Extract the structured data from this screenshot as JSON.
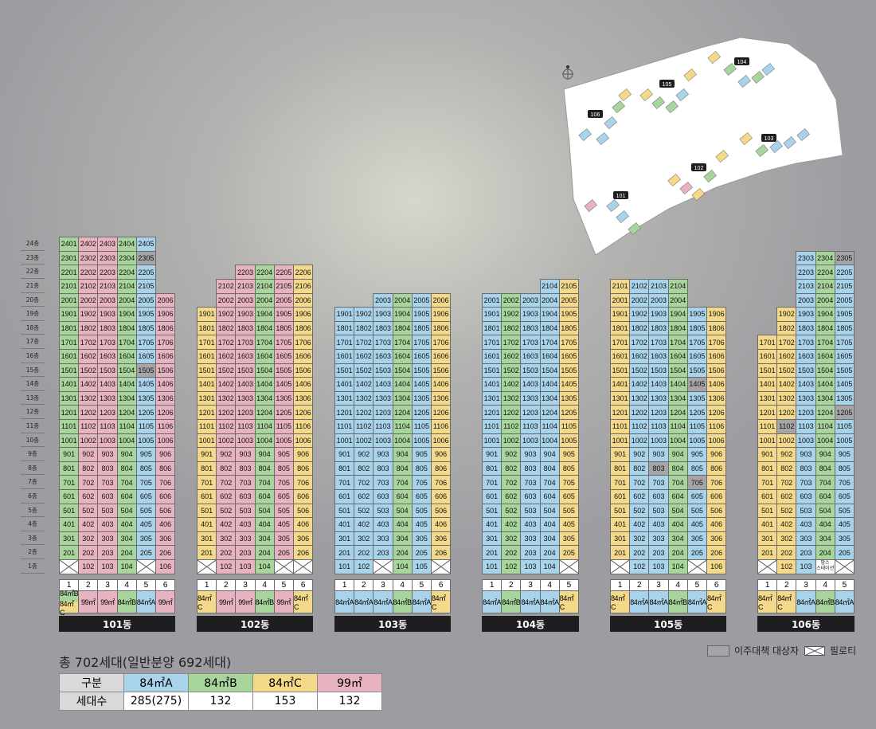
{
  "colors": {
    "A": "#a9d3ea",
    "B": "#a8d59b",
    "C": "#f4d98a",
    "D": "#e8b3c0",
    "relocation": "#a5a5a8",
    "pilotis": "#ffffff"
  },
  "floor_labels": [
    "24층",
    "23층",
    "22층",
    "21층",
    "20층",
    "19층",
    "18층",
    "17층",
    "16층",
    "15층",
    "14층",
    "13층",
    "12층",
    "11층",
    "10층",
    "9층",
    "8층",
    "7층",
    "6층",
    "5층",
    "4층",
    "3층",
    "2층",
    "1층"
  ],
  "buildings": [
    {
      "name": "101동",
      "line_types": [
        "B",
        "D",
        "D",
        "B",
        "A",
        "D"
      ],
      "type_labels": [
        [
          "84㎡B",
          "84㎡C"
        ],
        [
          "99㎡"
        ],
        [
          "99㎡"
        ],
        [
          "84㎡B"
        ],
        [
          "84㎡A"
        ],
        [
          "99㎡"
        ]
      ],
      "top_floors": [
        24,
        24,
        24,
        24,
        24,
        20
      ],
      "pilotis": [
        1,
        5
      ],
      "relocation": [
        "1505",
        "2305"
      ],
      "special": {}
    },
    {
      "name": "102동",
      "line_types": [
        "C",
        "D",
        "D",
        "B",
        "D",
        "C"
      ],
      "type_labels": [
        [
          "84㎡C"
        ],
        [
          "99㎡"
        ],
        [
          "99㎡"
        ],
        [
          "84㎡B"
        ],
        [
          "99㎡"
        ],
        [
          "84㎡C"
        ]
      ],
      "top_floors": [
        19,
        21,
        22,
        22,
        22,
        22
      ],
      "pilotis": [
        1,
        5,
        6
      ],
      "relocation": [],
      "special": {}
    },
    {
      "name": "103동",
      "line_types": [
        "A",
        "A",
        "A",
        "B",
        "A",
        "C"
      ],
      "type_labels": [
        [
          "84㎡A"
        ],
        [
          "84㎡A"
        ],
        [
          "84㎡A"
        ],
        [
          "84㎡B"
        ],
        [
          "84㎡A"
        ],
        [
          "84㎡C"
        ]
      ],
      "top_floors": [
        19,
        19,
        20,
        20,
        20,
        20
      ],
      "pilotis": [
        3,
        6
      ],
      "relocation": [],
      "special": {}
    },
    {
      "name": "104동",
      "line_types": [
        "A",
        "B",
        "A",
        "A",
        "C"
      ],
      "type_labels": [
        [
          "84㎡A"
        ],
        [
          "84㎡B"
        ],
        [
          "84㎡A"
        ],
        [
          "84㎡A"
        ],
        [
          "84㎡C"
        ]
      ],
      "top_floors": [
        20,
        20,
        20,
        21,
        21
      ],
      "pilotis": [
        5
      ],
      "relocation": [],
      "special": {}
    },
    {
      "name": "105동",
      "line_types": [
        "C",
        "A",
        "A",
        "B",
        "A",
        "C"
      ],
      "type_labels": [
        [
          "84㎡C"
        ],
        [
          "84㎡A"
        ],
        [
          "84㎡A"
        ],
        [
          "84㎡B"
        ],
        [
          "84㎡A"
        ],
        [
          "84㎡C"
        ]
      ],
      "top_floors": [
        21,
        21,
        21,
        21,
        19,
        19
      ],
      "pilotis": [
        1,
        5
      ],
      "relocation": [
        "803",
        "1405",
        "705"
      ],
      "special": {}
    },
    {
      "name": "106동",
      "line_types": [
        "C",
        "C",
        "A",
        "B",
        "A"
      ],
      "type_labels": [
        [
          "84㎡C"
        ],
        [
          "84㎡C"
        ],
        [
          "84㎡A"
        ],
        [
          "84㎡B"
        ],
        [
          "84㎡A"
        ]
      ],
      "top_floors": [
        17,
        19,
        23,
        23,
        23
      ],
      "pilotis": [
        1,
        5
      ],
      "relocation": [
        "1102",
        "1205",
        "2305"
      ],
      "special": {
        "4": "맘스\n스테이션"
      }
    }
  ],
  "site_labels": [
    "101",
    "102",
    "103",
    "104",
    "105",
    "106"
  ],
  "summary": {
    "title": "총 702세대(일반분양 692세대)",
    "header_label": "구분",
    "count_label": "세대수",
    "types": [
      {
        "name": "84㎡A",
        "count": "285(275)",
        "color": "#a9d3ea"
      },
      {
        "name": "84㎡B",
        "count": "132",
        "color": "#a8d59b"
      },
      {
        "name": "84㎡C",
        "count": "153",
        "color": "#f4d98a"
      },
      {
        "name": "99㎡",
        "count": "132",
        "color": "#e8b3c0"
      }
    ]
  },
  "legend": {
    "relocation": "이주대책 대상자",
    "pilotis": "필로티"
  }
}
